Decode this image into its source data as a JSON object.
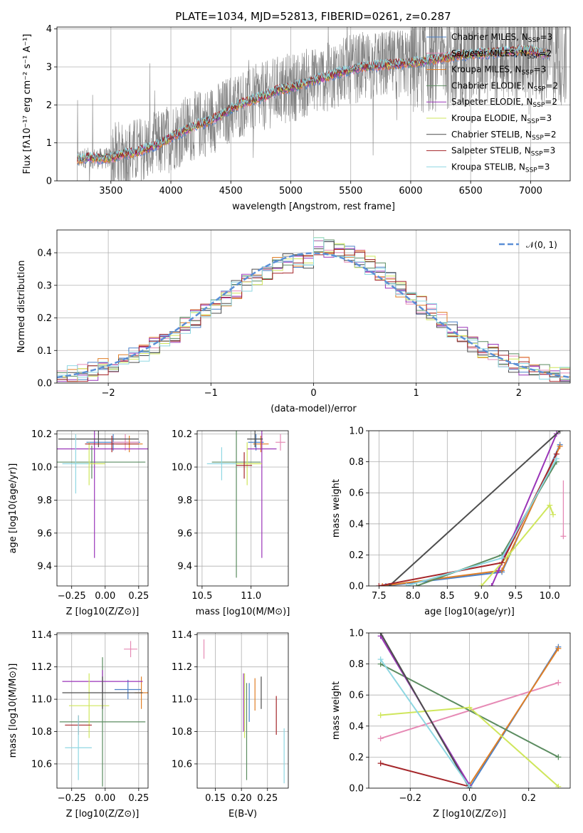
{
  "figure": {
    "title": "PLATE=1034, MJD=52813, FIBERID=0261, z=0.287",
    "colors": {
      "Chabrier MILES": "#4a80c8",
      "Salpeter MILES": "#e68ab5",
      "Kroupa MILES": "#e07f26",
      "Chabrier ELODIE": "#5b8c60",
      "Salpeter ELODIE": "#9a34b8",
      "Kroupa ELODIE": "#cfe65c",
      "Chabrier STELIB": "#4d4d4d",
      "Salpeter STELIB": "#a5262a",
      "Kroupa STELIB": "#8fd7e2",
      "normal": "#5b8fd6",
      "data": "#808080"
    },
    "legend_spectrum": [
      {
        "model": "Chabrier MILES",
        "n": "3"
      },
      {
        "model": "Salpeter MILES",
        "n": "2"
      },
      {
        "model": "Kroupa MILES",
        "n": "3"
      },
      {
        "model": "Chabrier ELODIE",
        "n": "2"
      },
      {
        "model": "Salpeter ELODIE",
        "n": "2"
      },
      {
        "model": "Kroupa ELODIE",
        "n": "3"
      },
      {
        "model": "Chabrier STELIB",
        "n": "2"
      },
      {
        "model": "Salpeter STELIB",
        "n": "3"
      },
      {
        "model": "Kroupa STELIB",
        "n": "3"
      }
    ],
    "legend_hist": "𝒩(0, 1)"
  },
  "chart_data": [
    {
      "id": "spectrum",
      "type": "line",
      "xlabel": "wavelength [Angstrom, rest frame]",
      "ylabel": "Flux [fλ10⁻¹⁷ erg cm⁻² s⁻¹ A⁻¹]",
      "xlim": [
        3050,
        7330
      ],
      "ylim": [
        0,
        4.05
      ],
      "xticks": [
        3500,
        4000,
        4500,
        5000,
        5500,
        6000,
        6500,
        7000
      ],
      "yticks": [
        0,
        1,
        2,
        3,
        4
      ],
      "model_continuum": {
        "x": [
          3220,
          3300,
          3400,
          3500,
          3600,
          3700,
          3800,
          3900,
          4000,
          4100,
          4200,
          4300,
          4400,
          4500,
          4600,
          4700,
          4800,
          4900,
          5000,
          5200,
          5400,
          5600,
          5800,
          6000,
          6200,
          6400,
          6600,
          6800,
          7000,
          7100
        ],
        "y": [
          0.55,
          0.62,
          0.58,
          0.6,
          0.7,
          0.75,
          0.85,
          0.95,
          1.15,
          1.3,
          1.45,
          1.55,
          1.7,
          1.9,
          2.05,
          2.15,
          2.25,
          2.4,
          2.45,
          2.65,
          2.85,
          3.0,
          3.05,
          3.1,
          3.2,
          3.3,
          3.35,
          3.4,
          3.45,
          3.35
        ]
      },
      "grid": true
    },
    {
      "id": "residual_hist",
      "type": "bar",
      "xlabel": "(data-model)/error",
      "ylabel": "Normed distribution",
      "xlim": [
        -2.5,
        2.5
      ],
      "ylim": [
        0,
        0.47
      ],
      "xticks": [
        -2,
        -1,
        0,
        1,
        2
      ],
      "yticks": [
        0.0,
        0.1,
        0.2,
        0.3,
        0.4
      ],
      "bin_width": 0.1,
      "grid": true
    },
    {
      "id": "age_vs_Z",
      "type": "scatter",
      "xlabel": "Z [log10(Z/Z⊙)]",
      "ylabel": "age  [log10(age/yr)]",
      "xlim": [
        -0.36,
        0.32
      ],
      "ylim": [
        9.28,
        10.22
      ],
      "xticks": [
        -0.25,
        0.0,
        0.25
      ],
      "xticklabels": [
        "−0.25",
        "0.00",
        "0.25"
      ],
      "yticks": [
        9.4,
        9.6,
        9.8,
        10.0,
        10.2
      ],
      "points": [
        {
          "model": "Chabrier MILES",
          "x": 0.06,
          "y": 10.15,
          "xerr": 0.2,
          "yerr": 0.05
        },
        {
          "model": "Salpeter MILES",
          "x": 0.15,
          "y": 10.15,
          "xerr": 0.1,
          "yerr": 0.05
        },
        {
          "model": "Kroupa MILES",
          "x": 0.18,
          "y": 10.14,
          "xerr": 0.1,
          "yerr": 0.05
        },
        {
          "model": "Chabrier ELODIE",
          "x": -0.1,
          "y": 10.03,
          "xerr": 0.4,
          "yerr": 0.1
        },
        {
          "model": "Salpeter ELODIE",
          "x": -0.08,
          "y": 10.11,
          "xerr": 0.4,
          "yerr": 0.66
        },
        {
          "model": "Kroupa ELODIE",
          "x": -0.12,
          "y": 10.02,
          "xerr": 0.12,
          "yerr": 0.13
        },
        {
          "model": "Chabrier STELIB",
          "x": -0.05,
          "y": 10.17,
          "xerr": 0.3,
          "yerr": 0.05
        },
        {
          "model": "Salpeter STELIB",
          "x": 0.05,
          "y": 10.14,
          "xerr": 0.2,
          "yerr": 0.05
        },
        {
          "model": "Kroupa STELIB",
          "x": -0.22,
          "y": 10.02,
          "xerr": 0.1,
          "yerr": 0.18
        }
      ]
    },
    {
      "id": "age_vs_mass",
      "type": "scatter",
      "xlabel": "mass [log10(M/M⊙)]",
      "ylabel": "",
      "xlim": [
        10.45,
        11.38
      ],
      "ylim": [
        9.28,
        10.22
      ],
      "xticks": [
        10.5,
        11.0
      ],
      "xticklabels": [
        "10.5",
        "11.0"
      ],
      "yticks": [
        9.4,
        9.6,
        9.8,
        10.0,
        10.2
      ],
      "points": [
        {
          "model": "Chabrier MILES",
          "x": 11.05,
          "y": 10.15,
          "xerr": 0.08,
          "yerr": 0.05
        },
        {
          "model": "Salpeter MILES",
          "x": 11.3,
          "y": 10.15,
          "xerr": 0.05,
          "yerr": 0.05
        },
        {
          "model": "Kroupa MILES",
          "x": 11.1,
          "y": 10.14,
          "xerr": 0.08,
          "yerr": 0.05
        },
        {
          "model": "Chabrier ELODIE",
          "x": 10.85,
          "y": 10.03,
          "xerr": 0.25,
          "yerr": 0.7
        },
        {
          "model": "Salpeter ELODIE",
          "x": 11.11,
          "y": 10.11,
          "xerr": 0.15,
          "yerr": 0.66
        },
        {
          "model": "Kroupa ELODIE",
          "x": 10.96,
          "y": 10.02,
          "xerr": 0.15,
          "yerr": 0.13
        },
        {
          "model": "Chabrier STELIB",
          "x": 11.04,
          "y": 10.17,
          "xerr": 0.08,
          "yerr": 0.05
        },
        {
          "model": "Salpeter STELIB",
          "x": 10.93,
          "y": 10.01,
          "xerr": 0.08,
          "yerr": 0.08
        },
        {
          "model": "Kroupa STELIB",
          "x": 10.7,
          "y": 10.02,
          "xerr": 0.15,
          "yerr": 0.1
        }
      ]
    },
    {
      "id": "weight_vs_age",
      "type": "line",
      "xlabel": "age  [log10(age/yr)]",
      "ylabel": "mass weight",
      "xlim": [
        7.35,
        10.3
      ],
      "ylim": [
        0,
        1
      ],
      "xticks": [
        7.5,
        8.0,
        8.5,
        9.0,
        9.5,
        10.0
      ],
      "xticklabels": [
        "7.5",
        "8.0",
        "8.5",
        "9.0",
        "9.5",
        "10.0"
      ],
      "yticks": [
        0.0,
        0.2,
        0.4,
        0.6,
        0.8,
        1.0
      ],
      "series": [
        {
          "model": "Chabrier MILES",
          "x": [
            7.6,
            9.3,
            10.15
          ],
          "y": [
            0.0,
            0.09,
            0.91
          ]
        },
        {
          "model": "Salpeter MILES",
          "x": [
            10.2
          ],
          "y": [
            0.32
          ],
          "yerr": [
            0.36
          ]
        },
        {
          "model": "Kroupa MILES",
          "x": [
            7.55,
            9.3,
            10.15
          ],
          "y": [
            0.0,
            0.1,
            0.9
          ]
        },
        {
          "model": "Chabrier ELODIE",
          "x": [
            8.05,
            9.3,
            10.1
          ],
          "y": [
            0.0,
            0.2,
            0.8
          ]
        },
        {
          "model": "Salpeter ELODIE",
          "x": [
            9.15,
            9.25,
            10.1
          ],
          "y": [
            0.0,
            0.1,
            0.98
          ]
        },
        {
          "model": "Kroupa ELODIE",
          "x": [
            9.0,
            9.4,
            10.0,
            10.05
          ],
          "y": [
            0.0,
            0.2,
            0.52,
            0.46
          ]
        },
        {
          "model": "Chabrier STELIB",
          "x": [
            7.65,
            10.15
          ],
          "y": [
            0.0,
            1.0
          ]
        },
        {
          "model": "Salpeter STELIB",
          "x": [
            7.5,
            9.3,
            10.1
          ],
          "y": [
            0.0,
            0.15,
            0.85
          ]
        },
        {
          "model": "Kroupa STELIB",
          "x": [
            7.9,
            9.3,
            10.1
          ],
          "y": [
            0.0,
            0.18,
            0.82
          ]
        }
      ]
    },
    {
      "id": "mass_vs_Z",
      "type": "scatter",
      "xlabel": "Z [log10(Z/Z⊙)]",
      "ylabel": "mass [log10(M/M⊙)]",
      "xlim": [
        -0.36,
        0.32
      ],
      "ylim": [
        10.45,
        11.41
      ],
      "xticks": [
        -0.25,
        0.0,
        0.25
      ],
      "xticklabels": [
        "−0.25",
        "0.00",
        "0.25"
      ],
      "yticks": [
        10.6,
        10.8,
        11.0,
        11.2,
        11.4
      ],
      "points": [
        {
          "model": "Chabrier MILES",
          "x": 0.17,
          "y": 11.06,
          "xerr": 0.1,
          "yerr": 0.06
        },
        {
          "model": "Salpeter MILES",
          "x": 0.19,
          "y": 11.31,
          "xerr": 0.05,
          "yerr": 0.05
        },
        {
          "model": "Kroupa MILES",
          "x": 0.27,
          "y": 11.04,
          "xerr": 0.05,
          "yerr": 0.1
        },
        {
          "model": "Chabrier ELODIE",
          "x": -0.02,
          "y": 10.86,
          "xerr": 0.32,
          "yerr": 0.4
        },
        {
          "model": "Salpeter ELODIE",
          "x": -0.02,
          "y": 11.11,
          "xerr": 0.3,
          "yerr": 0.07
        },
        {
          "model": "Kroupa ELODIE",
          "x": -0.12,
          "y": 10.96,
          "xerr": 0.15,
          "yerr": 0.2
        },
        {
          "model": "Chabrier STELIB",
          "x": -0.02,
          "y": 11.04,
          "xerr": 0.3,
          "yerr": 0.1
        },
        {
          "model": "Salpeter STELIB",
          "x": -0.2,
          "y": 10.84,
          "xerr": 0.1,
          "yerr": 0.06
        },
        {
          "model": "Kroupa STELIB",
          "x": -0.2,
          "y": 10.7,
          "xerr": 0.1,
          "yerr": 0.2
        }
      ]
    },
    {
      "id": "mass_vs_ebv",
      "type": "scatter",
      "xlabel": "E(B-V)",
      "ylabel": "",
      "xlim": [
        0.115,
        0.29
      ],
      "ylim": [
        10.45,
        11.41
      ],
      "xticks": [
        0.15,
        0.2,
        0.25
      ],
      "xticklabels": [
        "0.15",
        "0.20",
        "0.25"
      ],
      "yticks": [
        10.6,
        10.8,
        11.0,
        11.2,
        11.4
      ],
      "points": [
        {
          "model": "Chabrier MILES",
          "x": 0.215,
          "y": 10.98,
          "xerr": 0,
          "yerr": 0.12
        },
        {
          "model": "Salpeter MILES",
          "x": 0.128,
          "y": 11.31,
          "xerr": 0,
          "yerr": 0.06
        },
        {
          "model": "Kroupa MILES",
          "x": 0.226,
          "y": 11.03,
          "xerr": 0,
          "yerr": 0.1
        },
        {
          "model": "Chabrier ELODIE",
          "x": 0.21,
          "y": 10.8,
          "xerr": 0,
          "yerr": 0.3
        },
        {
          "model": "Salpeter ELODIE",
          "x": 0.204,
          "y": 10.98,
          "xerr": 0,
          "yerr": 0.18
        },
        {
          "model": "Kroupa ELODIE",
          "x": 0.206,
          "y": 10.96,
          "xerr": 0,
          "yerr": 0.2
        },
        {
          "model": "Chabrier STELIB",
          "x": 0.238,
          "y": 11.04,
          "xerr": 0,
          "yerr": 0.1
        },
        {
          "model": "Salpeter STELIB",
          "x": 0.267,
          "y": 10.9,
          "xerr": 0,
          "yerr": 0.12
        },
        {
          "model": "Kroupa STELIB",
          "x": 0.282,
          "y": 10.65,
          "xerr": 0,
          "yerr": 0.17
        }
      ]
    },
    {
      "id": "weight_vs_Z",
      "type": "line",
      "xlabel": "Z [log10(Z/Z⊙)]",
      "ylabel": "mass weight",
      "xlim": [
        -0.34,
        0.34
      ],
      "ylim": [
        0,
        1
      ],
      "xticks": [
        -0.2,
        0.0,
        0.2
      ],
      "xticklabels": [
        "−0.2",
        "0.0",
        "0.2"
      ],
      "yticks": [
        0.0,
        0.2,
        0.4,
        0.6,
        0.8,
        1.0
      ],
      "series": [
        {
          "model": "Chabrier MILES",
          "x": [
            0.0,
            0.3
          ],
          "y": [
            0.0,
            0.91
          ]
        },
        {
          "model": "Salpeter MILES",
          "x": [
            -0.3,
            0.3
          ],
          "y": [
            0.32,
            0.68
          ]
        },
        {
          "model": "Kroupa MILES",
          "x": [
            0.0,
            0.3
          ],
          "y": [
            0.02,
            0.9
          ]
        },
        {
          "model": "Chabrier ELODIE",
          "x": [
            -0.3,
            0.3
          ],
          "y": [
            0.8,
            0.2
          ]
        },
        {
          "model": "Salpeter ELODIE",
          "x": [
            -0.3,
            0.0
          ],
          "y": [
            0.98,
            0.02
          ]
        },
        {
          "model": "Kroupa ELODIE",
          "x": [
            -0.3,
            0.0,
            0.3
          ],
          "y": [
            0.47,
            0.52,
            0.01
          ]
        },
        {
          "model": "Chabrier STELIB",
          "x": [
            -0.3,
            0.0
          ],
          "y": [
            1.0,
            0.0
          ]
        },
        {
          "model": "Salpeter STELIB",
          "x": [
            -0.3,
            0.0
          ],
          "y": [
            0.16,
            0.01
          ]
        },
        {
          "model": "Kroupa STELIB",
          "x": [
            -0.3,
            0.0
          ],
          "y": [
            0.83,
            0.01
          ]
        }
      ]
    }
  ]
}
